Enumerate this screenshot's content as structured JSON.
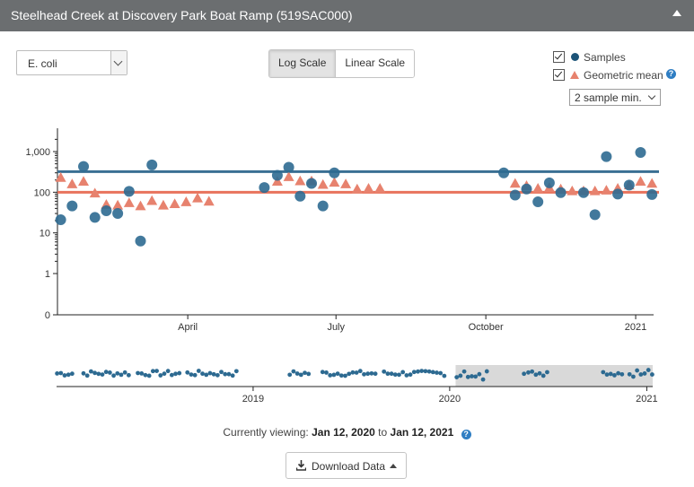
{
  "header": {
    "title": "Steelhead Creek at Discovery Park Boat Ramp (519SAC000)"
  },
  "parameter": {
    "selected": "E. coli"
  },
  "scale": {
    "log_label": "Log Scale",
    "linear_label": "Linear Scale",
    "active": "log"
  },
  "legend": {
    "samples_label": "Samples",
    "geomean_label": "Geometric mean",
    "help_glyph": "?",
    "min_label": "2 sample min."
  },
  "colors": {
    "samples": "#2d6a91",
    "geomean": "#e7826e",
    "samples_threshold": "#3a6f93",
    "geomean_threshold": "#e8735c",
    "brush": "#d9d9d9"
  },
  "chart_data": {
    "type": "scatter",
    "yscale": "log",
    "ylim": [
      0,
      2000
    ],
    "y_ticks": [
      {
        "value": 0,
        "label": "0"
      },
      {
        "value": 1,
        "label": "1"
      },
      {
        "value": 10,
        "label": "10"
      },
      {
        "value": 100,
        "label": "100"
      },
      {
        "value": 1000,
        "label": "1,000"
      }
    ],
    "xlim": [
      "2020-01-12",
      "2021-01-12"
    ],
    "x_ticks": [
      {
        "date": "2020-04-01",
        "label": "April"
      },
      {
        "date": "2020-07-01",
        "label": "July"
      },
      {
        "date": "2020-10-01",
        "label": "October"
      },
      {
        "date": "2021-01-01",
        "label": "2021"
      }
    ],
    "thresholds": [
      {
        "series": "Samples",
        "value": 320
      },
      {
        "series": "Geometric mean",
        "value": 100
      }
    ],
    "series": [
      {
        "name": "Samples",
        "marker": "circle",
        "points": [
          [
            "2020-01-14",
            21
          ],
          [
            "2020-01-21",
            46
          ],
          [
            "2020-01-28",
            430
          ],
          [
            "2020-02-04",
            24
          ],
          [
            "2020-02-11",
            35
          ],
          [
            "2020-02-18",
            30
          ],
          [
            "2020-02-25",
            105
          ],
          [
            "2020-03-03",
            6.3
          ],
          [
            "2020-03-10",
            470
          ],
          [
            "2020-05-18",
            130
          ],
          [
            "2020-05-26",
            260
          ],
          [
            "2020-06-02",
            410
          ],
          [
            "2020-06-09",
            80
          ],
          [
            "2020-06-16",
            165
          ],
          [
            "2020-06-23",
            46
          ],
          [
            "2020-06-30",
            300
          ],
          [
            "2020-10-12",
            300
          ],
          [
            "2020-10-19",
            85
          ],
          [
            "2020-10-26",
            120
          ],
          [
            "2020-11-02",
            58
          ],
          [
            "2020-11-09",
            170
          ],
          [
            "2020-11-16",
            98
          ],
          [
            "2020-11-30",
            98
          ],
          [
            "2020-12-07",
            28
          ],
          [
            "2020-12-14",
            750
          ],
          [
            "2020-12-21",
            90
          ],
          [
            "2020-12-28",
            150
          ],
          [
            "2021-01-04",
            950
          ],
          [
            "2021-01-11",
            88
          ]
        ]
      },
      {
        "name": "Geometric mean",
        "marker": "triangle",
        "points": [
          [
            "2020-01-14",
            230
          ],
          [
            "2020-01-21",
            160
          ],
          [
            "2020-01-28",
            185
          ],
          [
            "2020-02-04",
            95
          ],
          [
            "2020-02-11",
            50
          ],
          [
            "2020-02-18",
            48
          ],
          [
            "2020-02-25",
            55
          ],
          [
            "2020-03-03",
            46
          ],
          [
            "2020-03-10",
            62
          ],
          [
            "2020-03-17",
            48
          ],
          [
            "2020-03-24",
            52
          ],
          [
            "2020-03-31",
            58
          ],
          [
            "2020-04-07",
            72
          ],
          [
            "2020-04-14",
            60
          ],
          [
            "2020-05-26",
            185
          ],
          [
            "2020-06-02",
            240
          ],
          [
            "2020-06-09",
            190
          ],
          [
            "2020-06-16",
            190
          ],
          [
            "2020-06-23",
            155
          ],
          [
            "2020-06-30",
            175
          ],
          [
            "2020-07-07",
            160
          ],
          [
            "2020-07-14",
            120
          ],
          [
            "2020-07-21",
            125
          ],
          [
            "2020-07-28",
            125
          ],
          [
            "2020-10-19",
            165
          ],
          [
            "2020-10-26",
            145
          ],
          [
            "2020-11-02",
            125
          ],
          [
            "2020-11-09",
            130
          ],
          [
            "2020-11-16",
            120
          ],
          [
            "2020-11-23",
            108
          ],
          [
            "2020-11-30",
            108
          ],
          [
            "2020-12-07",
            108
          ],
          [
            "2020-12-14",
            112
          ],
          [
            "2020-12-21",
            125
          ],
          [
            "2020-12-28",
            150
          ],
          [
            "2021-01-04",
            185
          ],
          [
            "2021-01-11",
            165
          ]
        ]
      }
    ],
    "overview": {
      "xlim": [
        "2018-01-01",
        "2021-01-12"
      ],
      "x_ticks": [
        {
          "date": "2019-01-01",
          "label": "2019"
        },
        {
          "date": "2020-01-01",
          "label": "2020"
        },
        {
          "date": "2021-01-01",
          "label": "2021"
        }
      ],
      "brush": [
        "2020-01-12",
        "2021-01-12"
      ]
    }
  },
  "viewing": {
    "prefix": "Currently viewing:",
    "start": "Jan 12, 2020",
    "connector": "to",
    "end": "Jan 12, 2021",
    "help_glyph": "?"
  },
  "download": {
    "label": "Download Data"
  }
}
